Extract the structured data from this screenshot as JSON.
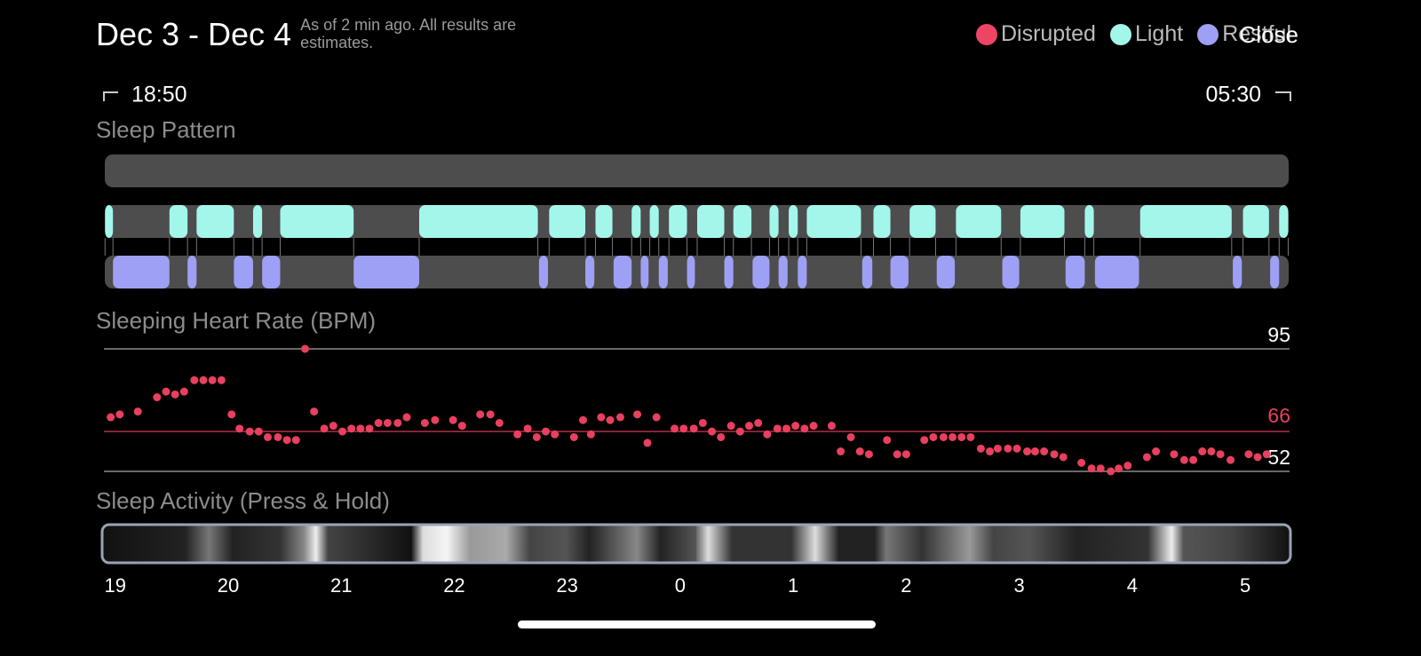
{
  "header": {
    "title": "Dec 3 - Dec 4",
    "subtitle": "As of 2 min ago. All results are estimates.",
    "close": "Close"
  },
  "legend": [
    {
      "name": "Disrupted",
      "color": "#ef4565"
    },
    {
      "name": "Light",
      "color": "#a3f7ea"
    },
    {
      "name": "Restful",
      "color": "#9da0f4"
    }
  ],
  "range": {
    "start": "18:50",
    "end": "05:30"
  },
  "xlim": [
    18.9,
    29.4
  ],
  "sleep_pattern": {
    "title": "Sleep Pattern",
    "light": [
      [
        18.91,
        18.98
      ],
      [
        19.48,
        19.64
      ],
      [
        19.72,
        20.05
      ],
      [
        20.22,
        20.3
      ],
      [
        20.46,
        21.11
      ],
      [
        21.69,
        22.74
      ],
      [
        22.84,
        23.16
      ],
      [
        23.25,
        23.4
      ],
      [
        23.57,
        23.65
      ],
      [
        23.73,
        23.81
      ],
      [
        23.9,
        24.06
      ],
      [
        24.15,
        24.39
      ],
      [
        24.47,
        24.63
      ],
      [
        24.79,
        24.87
      ],
      [
        24.96,
        25.04
      ],
      [
        25.12,
        25.6
      ],
      [
        25.71,
        25.86
      ],
      [
        26.03,
        26.26
      ],
      [
        26.44,
        26.84
      ],
      [
        27.01,
        27.4
      ],
      [
        27.58,
        27.66
      ],
      [
        28.07,
        28.88
      ],
      [
        28.98,
        29.21
      ],
      [
        29.3,
        29.38
      ]
    ],
    "restful": [
      [
        18.98,
        19.48
      ],
      [
        19.64,
        19.72
      ],
      [
        20.05,
        20.22
      ],
      [
        20.3,
        20.46
      ],
      [
        21.11,
        21.69
      ],
      [
        22.75,
        22.83
      ],
      [
        23.16,
        23.24
      ],
      [
        23.41,
        23.57
      ],
      [
        23.65,
        23.72
      ],
      [
        23.81,
        23.89
      ],
      [
        24.06,
        24.13
      ],
      [
        24.39,
        24.47
      ],
      [
        24.64,
        24.79
      ],
      [
        24.87,
        24.95
      ],
      [
        25.04,
        25.12
      ],
      [
        25.61,
        25.7
      ],
      [
        25.86,
        26.02
      ],
      [
        26.27,
        26.43
      ],
      [
        26.85,
        27.0
      ],
      [
        27.41,
        27.58
      ],
      [
        27.67,
        28.06
      ],
      [
        28.89,
        28.97
      ],
      [
        29.22,
        29.3
      ]
    ]
  },
  "heart_rate": {
    "type": "scatter",
    "title": "Sleeping Heart Rate (BPM)",
    "color": "#e8405e",
    "x": [
      18.96,
      19.04,
      19.2,
      19.37,
      19.45,
      19.53,
      19.61,
      19.7,
      19.78,
      19.86,
      19.94,
      20.03,
      20.1,
      20.19,
      20.27,
      20.35,
      20.44,
      20.52,
      20.6,
      20.68,
      20.76,
      20.85,
      20.93,
      21.01,
      21.09,
      21.17,
      21.25,
      21.33,
      21.41,
      21.5,
      21.58,
      21.74,
      21.83,
      21.99,
      22.07,
      22.23,
      22.32,
      22.4,
      22.56,
      22.65,
      22.73,
      22.81,
      22.89,
      23.06,
      23.14,
      23.21,
      23.3,
      23.38,
      23.47,
      23.62,
      23.71,
      23.79,
      23.95,
      24.03,
      24.12,
      24.2,
      24.28,
      24.36,
      24.45,
      24.53,
      24.61,
      24.69,
      24.77,
      24.86,
      24.94,
      25.02,
      25.1,
      25.18,
      25.34,
      25.42,
      25.51,
      25.59,
      25.67,
      25.83,
      25.92,
      26,
      26.16,
      26.24,
      26.33,
      26.41,
      26.49,
      26.57,
      26.66,
      26.74,
      26.81,
      26.9,
      26.98,
      27.07,
      27.14,
      27.22,
      27.31,
      27.39,
      27.55,
      27.64,
      27.72,
      27.81,
      27.88,
      27.96,
      28.13,
      28.21,
      28.37,
      28.46,
      28.54,
      28.62,
      28.7,
      28.78,
      28.87,
      29.03,
      29.11,
      29.19
    ],
    "values": [
      71,
      72,
      73,
      78,
      80,
      79,
      80,
      84,
      84,
      84,
      84,
      72,
      67,
      66,
      66,
      64,
      64,
      63,
      63,
      95,
      73,
      67,
      68,
      66,
      67,
      67,
      67,
      69,
      69,
      69,
      71,
      69,
      70,
      70,
      68,
      72,
      72,
      69,
      65,
      67,
      64,
      66,
      65,
      64,
      70,
      65,
      71,
      70,
      71,
      72,
      62,
      71,
      67,
      67,
      67,
      69,
      66,
      64,
      68,
      66,
      68,
      69,
      65,
      67,
      67,
      68,
      67,
      68,
      68,
      59,
      64,
      59,
      58,
      63,
      58,
      58,
      63,
      64,
      64,
      64,
      64,
      64,
      60,
      59,
      60,
      60,
      60,
      59,
      59,
      59,
      58,
      57,
      55,
      53,
      53,
      52,
      53,
      54,
      57,
      59,
      58,
      56,
      56,
      59,
      59,
      58,
      56,
      58,
      57,
      58
    ],
    "ylim": [
      52,
      95
    ],
    "yticks": [
      52,
      95
    ],
    "average": 66
  },
  "activity": {
    "title": "Sleep Activity (Press & Hold)",
    "xticks": [
      19,
      20,
      21,
      22,
      23,
      {
        "value": 24,
        "label": "0"
      },
      {
        "value": 25,
        "label": "1"
      },
      {
        "value": 26,
        "label": "2"
      },
      {
        "value": 27,
        "label": "3"
      },
      {
        "value": 28,
        "label": "4"
      },
      {
        "value": 29,
        "label": "5"
      }
    ]
  }
}
